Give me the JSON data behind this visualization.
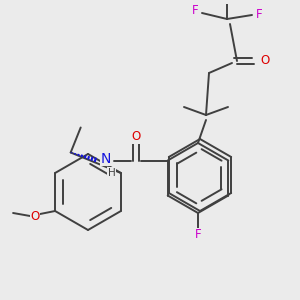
{
  "background_color": "#ebebeb",
  "bond_color": "#404040",
  "bond_width": 1.4,
  "atom_colors": {
    "O": "#dd0000",
    "N": "#1414dd",
    "F": "#cc00cc"
  },
  "font_size_atom": 8.5,
  "font_size_H": 7.5
}
